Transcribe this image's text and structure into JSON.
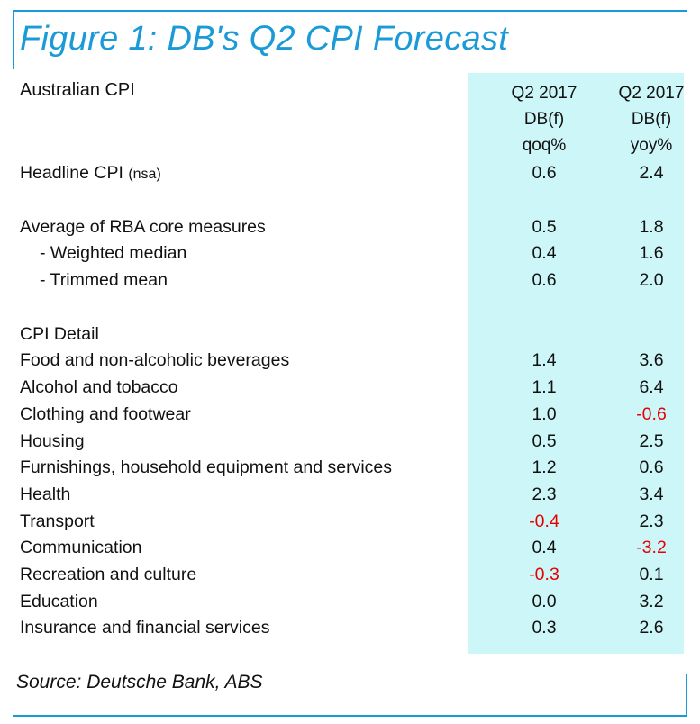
{
  "figure": {
    "title": "Figure 1: DB's Q2 CPI Forecast",
    "accent_color": "#1a9ad6",
    "highlight_color": "#cdf6f8",
    "negative_color": "#e60000"
  },
  "table": {
    "section_label": "Australian CPI",
    "columns": [
      {
        "line1": "Q2 2017",
        "line2": "DB(f)",
        "line3": "qoq%"
      },
      {
        "line1": "Q2 2017",
        "line2": "DB(f)",
        "line3": "yoy%"
      }
    ],
    "headline": {
      "label": "Headline CPI",
      "note": "(nsa)",
      "qoq": "0.6",
      "yoy": "2.4"
    },
    "core": {
      "label": "Average of RBA core measures",
      "qoq": "0.5",
      "yoy": "1.8",
      "items": [
        {
          "label": "- Weighted median",
          "qoq": "0.4",
          "yoy": "1.6"
        },
        {
          "label": "- Trimmed mean",
          "qoq": "0.6",
          "yoy": "2.0"
        }
      ]
    },
    "detail": {
      "label": "CPI Detail",
      "rows": [
        {
          "label": "Food and non-alcoholic beverages",
          "qoq": "1.4",
          "yoy": "3.6"
        },
        {
          "label": "Alcohol and tobacco",
          "qoq": "1.1",
          "yoy": "6.4"
        },
        {
          "label": "Clothing and footwear",
          "qoq": "1.0",
          "yoy": "-0.6"
        },
        {
          "label": "Housing",
          "qoq": "0.5",
          "yoy": "2.5"
        },
        {
          "label": "Furnishings, household equipment and services",
          "qoq": "1.2",
          "yoy": "0.6"
        },
        {
          "label": "Health",
          "qoq": "2.3",
          "yoy": "3.4"
        },
        {
          "label": "Transport",
          "qoq": "-0.4",
          "yoy": "2.3"
        },
        {
          "label": "Communication",
          "qoq": "0.4",
          "yoy": "-3.2"
        },
        {
          "label": "Recreation and culture",
          "qoq": "-0.3",
          "yoy": "0.1"
        },
        {
          "label": "Education",
          "qoq": "0.0",
          "yoy": "3.2"
        },
        {
          "label": "Insurance and financial services",
          "qoq": "0.3",
          "yoy": "2.6"
        }
      ]
    }
  },
  "source": "Source: Deutsche Bank, ABS"
}
